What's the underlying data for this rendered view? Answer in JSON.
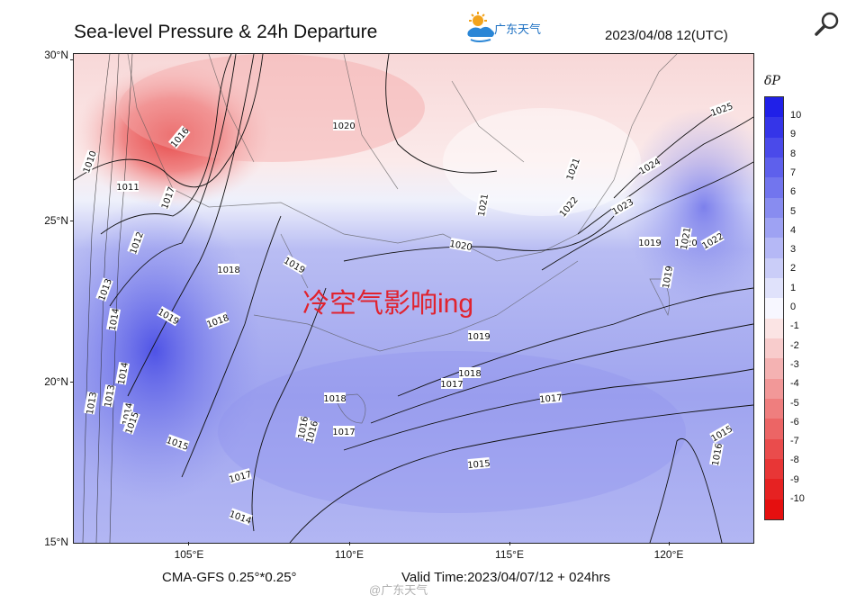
{
  "header": {
    "title": "Sea-level Pressure & 24h Departure",
    "datetime": "2023/04/08 12(UTC)",
    "logo_text": "广东天气",
    "logo_icon": "sun-cloud-logo-icon"
  },
  "toolbar": {
    "zoom_icon": "magnifier-icon"
  },
  "map": {
    "latitude_labels": [
      "30°N",
      "25°N",
      "20°N",
      "15°N"
    ],
    "longitude_labels": [
      "105°E",
      "110°E",
      "115°E",
      "120°E"
    ],
    "isobar_labels": [
      "1010",
      "1011",
      "1012",
      "1013",
      "1013",
      "1013",
      "1014",
      "1014",
      "1014",
      "1014",
      "1015",
      "1015",
      "1015",
      "1015",
      "1016",
      "1016",
      "1016",
      "1016",
      "1017",
      "1017",
      "1017",
      "1017",
      "1017",
      "1018",
      "1018",
      "1018",
      "1018",
      "1019",
      "1019",
      "1019",
      "1019",
      "1019",
      "1020",
      "1020",
      "1020",
      "1021",
      "1021",
      "1021",
      "1022",
      "1022",
      "1023",
      "1024",
      "1025"
    ],
    "annotation": "冷空气影响ing"
  },
  "legend": {
    "title": "δP",
    "values": [
      "10",
      "9",
      "8",
      "7",
      "6",
      "5",
      "4",
      "3",
      "2",
      "1",
      "0",
      "-1",
      "-2",
      "-3",
      "-4",
      "-5",
      "-6",
      "-7",
      "-8",
      "-9",
      "-10"
    ],
    "colors": [
      "#2020e8",
      "#3535e8",
      "#4a4aea",
      "#5e60ec",
      "#7275ee",
      "#888cf0",
      "#9ea2f3",
      "#b5b8f6",
      "#cacdf8",
      "#e0e2fb",
      "#f7f7ff",
      "#fbe4e4",
      "#f8cccc",
      "#f4b2b2",
      "#f29898",
      "#ef7e7e",
      "#ec6565",
      "#ea4c4c",
      "#e83636",
      "#e62222",
      "#e50f0f"
    ]
  },
  "footer": {
    "model": "CMA-GFS  0.25°*0.25°",
    "valid_time": "Valid Time:2023/04/07/12 + 024hrs",
    "watermark": "@广东天气"
  }
}
